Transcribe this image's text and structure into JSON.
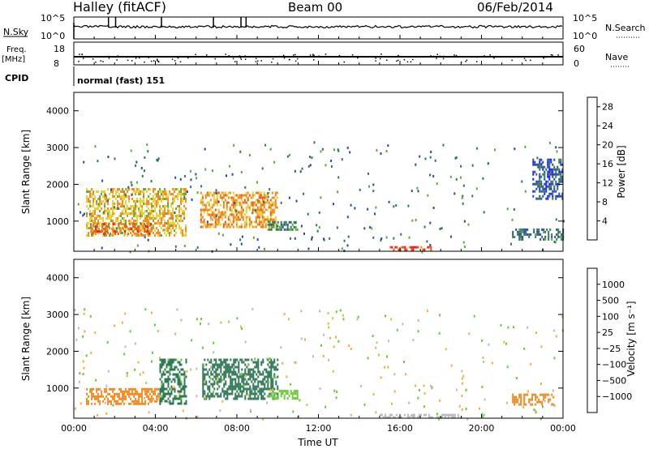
{
  "header": {
    "station": "Halley (fitACF)",
    "beam": "Beam 00",
    "date": "06/Feb/2014"
  },
  "strip": {
    "nsky_label": "N.Sky",
    "nsky_ticks": [
      "10^5",
      "10^0"
    ],
    "nsearch_label": "N.Search",
    "nsearch_ticks": [
      "10^5",
      "10^0"
    ],
    "freq_label": "Freq.",
    "freq_unit": "[MHz]",
    "freq_ticks": [
      "18",
      "8"
    ],
    "nave_label": "Nave",
    "nave_ticks": [
      "60",
      "0"
    ],
    "cpid_label": "CPID",
    "cpid_text": "normal (fast) 151"
  },
  "colors": {
    "power": [
      "#1a1aff",
      "#2a4aa0",
      "#2f7a55",
      "#5aaa3a",
      "#e8d030",
      "#f08a20",
      "#f05a10",
      "#e81e1e"
    ],
    "velocity": [
      "#e81e1e",
      "#f05a10",
      "#f08a20",
      "#f0b040",
      "#bbbbbb",
      "#66cc33",
      "#2f7a55",
      "#2a4aa0",
      "#1a1aff"
    ]
  },
  "chart_data": [
    {
      "type": "heatmap",
      "name": "power",
      "ylabel": "Slant Range [km]",
      "yticks": [
        "1000",
        "2000",
        "3000",
        "4000"
      ],
      "ylim": [
        180,
        4500
      ],
      "xlim": [
        "00:00",
        "24:00"
      ],
      "colorbar_label": "Power [dB]",
      "colorbar_ticks": [
        "4",
        "8",
        "12",
        "16",
        "20",
        "24",
        "28"
      ],
      "colorbar_range": [
        0,
        30
      ],
      "regions": [
        {
          "t": [
            0.6,
            5.5
          ],
          "r": [
            600,
            1900
          ],
          "level": 18
        },
        {
          "t": [
            0.8,
            3.8
          ],
          "r": [
            650,
            950
          ],
          "level": 24
        },
        {
          "t": [
            6.2,
            10.0
          ],
          "r": [
            850,
            1800
          ],
          "level": 20
        },
        {
          "t": [
            9.5,
            11.0
          ],
          "r": [
            750,
            1000
          ],
          "level": 10
        },
        {
          "t": [
            15.5,
            17.5
          ],
          "r": [
            200,
            320
          ],
          "level": 26
        },
        {
          "t": [
            21.5,
            24.0
          ],
          "r": [
            500,
            800
          ],
          "level": 8
        },
        {
          "t": [
            22.5,
            24.0
          ],
          "r": [
            1600,
            2700
          ],
          "level": 6
        }
      ]
    },
    {
      "type": "heatmap",
      "name": "velocity",
      "ylabel": "Slant Range [km]",
      "yticks": [
        "1000",
        "2000",
        "3000",
        "4000"
      ],
      "ylim": [
        180,
        4500
      ],
      "xlabel": "Time UT",
      "xticks": [
        "00:00",
        "04:00",
        "08:00",
        "12:00",
        "16:00",
        "20:00",
        "00:00"
      ],
      "xlim": [
        "00:00",
        "24:00"
      ],
      "colorbar_label": "Velocity [m s⁻¹]",
      "colorbar_ticks": [
        "1000",
        "500",
        "100",
        "25",
        "−25",
        "−100",
        "−500",
        "−1000"
      ],
      "regions": [
        {
          "t": [
            0.6,
            4.2
          ],
          "r": [
            550,
            1000
          ],
          "level": -300
        },
        {
          "t": [
            4.2,
            5.5
          ],
          "r": [
            600,
            1800
          ],
          "level": 150
        },
        {
          "t": [
            6.3,
            10.0
          ],
          "r": [
            700,
            1800
          ],
          "level": 200
        },
        {
          "t": [
            9.5,
            11.0
          ],
          "r": [
            750,
            950
          ],
          "level": 60
        },
        {
          "t": [
            15.0,
            19.0
          ],
          "r": [
            200,
            300
          ],
          "level": 10
        },
        {
          "t": [
            21.5,
            23.5
          ],
          "r": [
            550,
            850
          ],
          "level": -300
        }
      ]
    }
  ]
}
